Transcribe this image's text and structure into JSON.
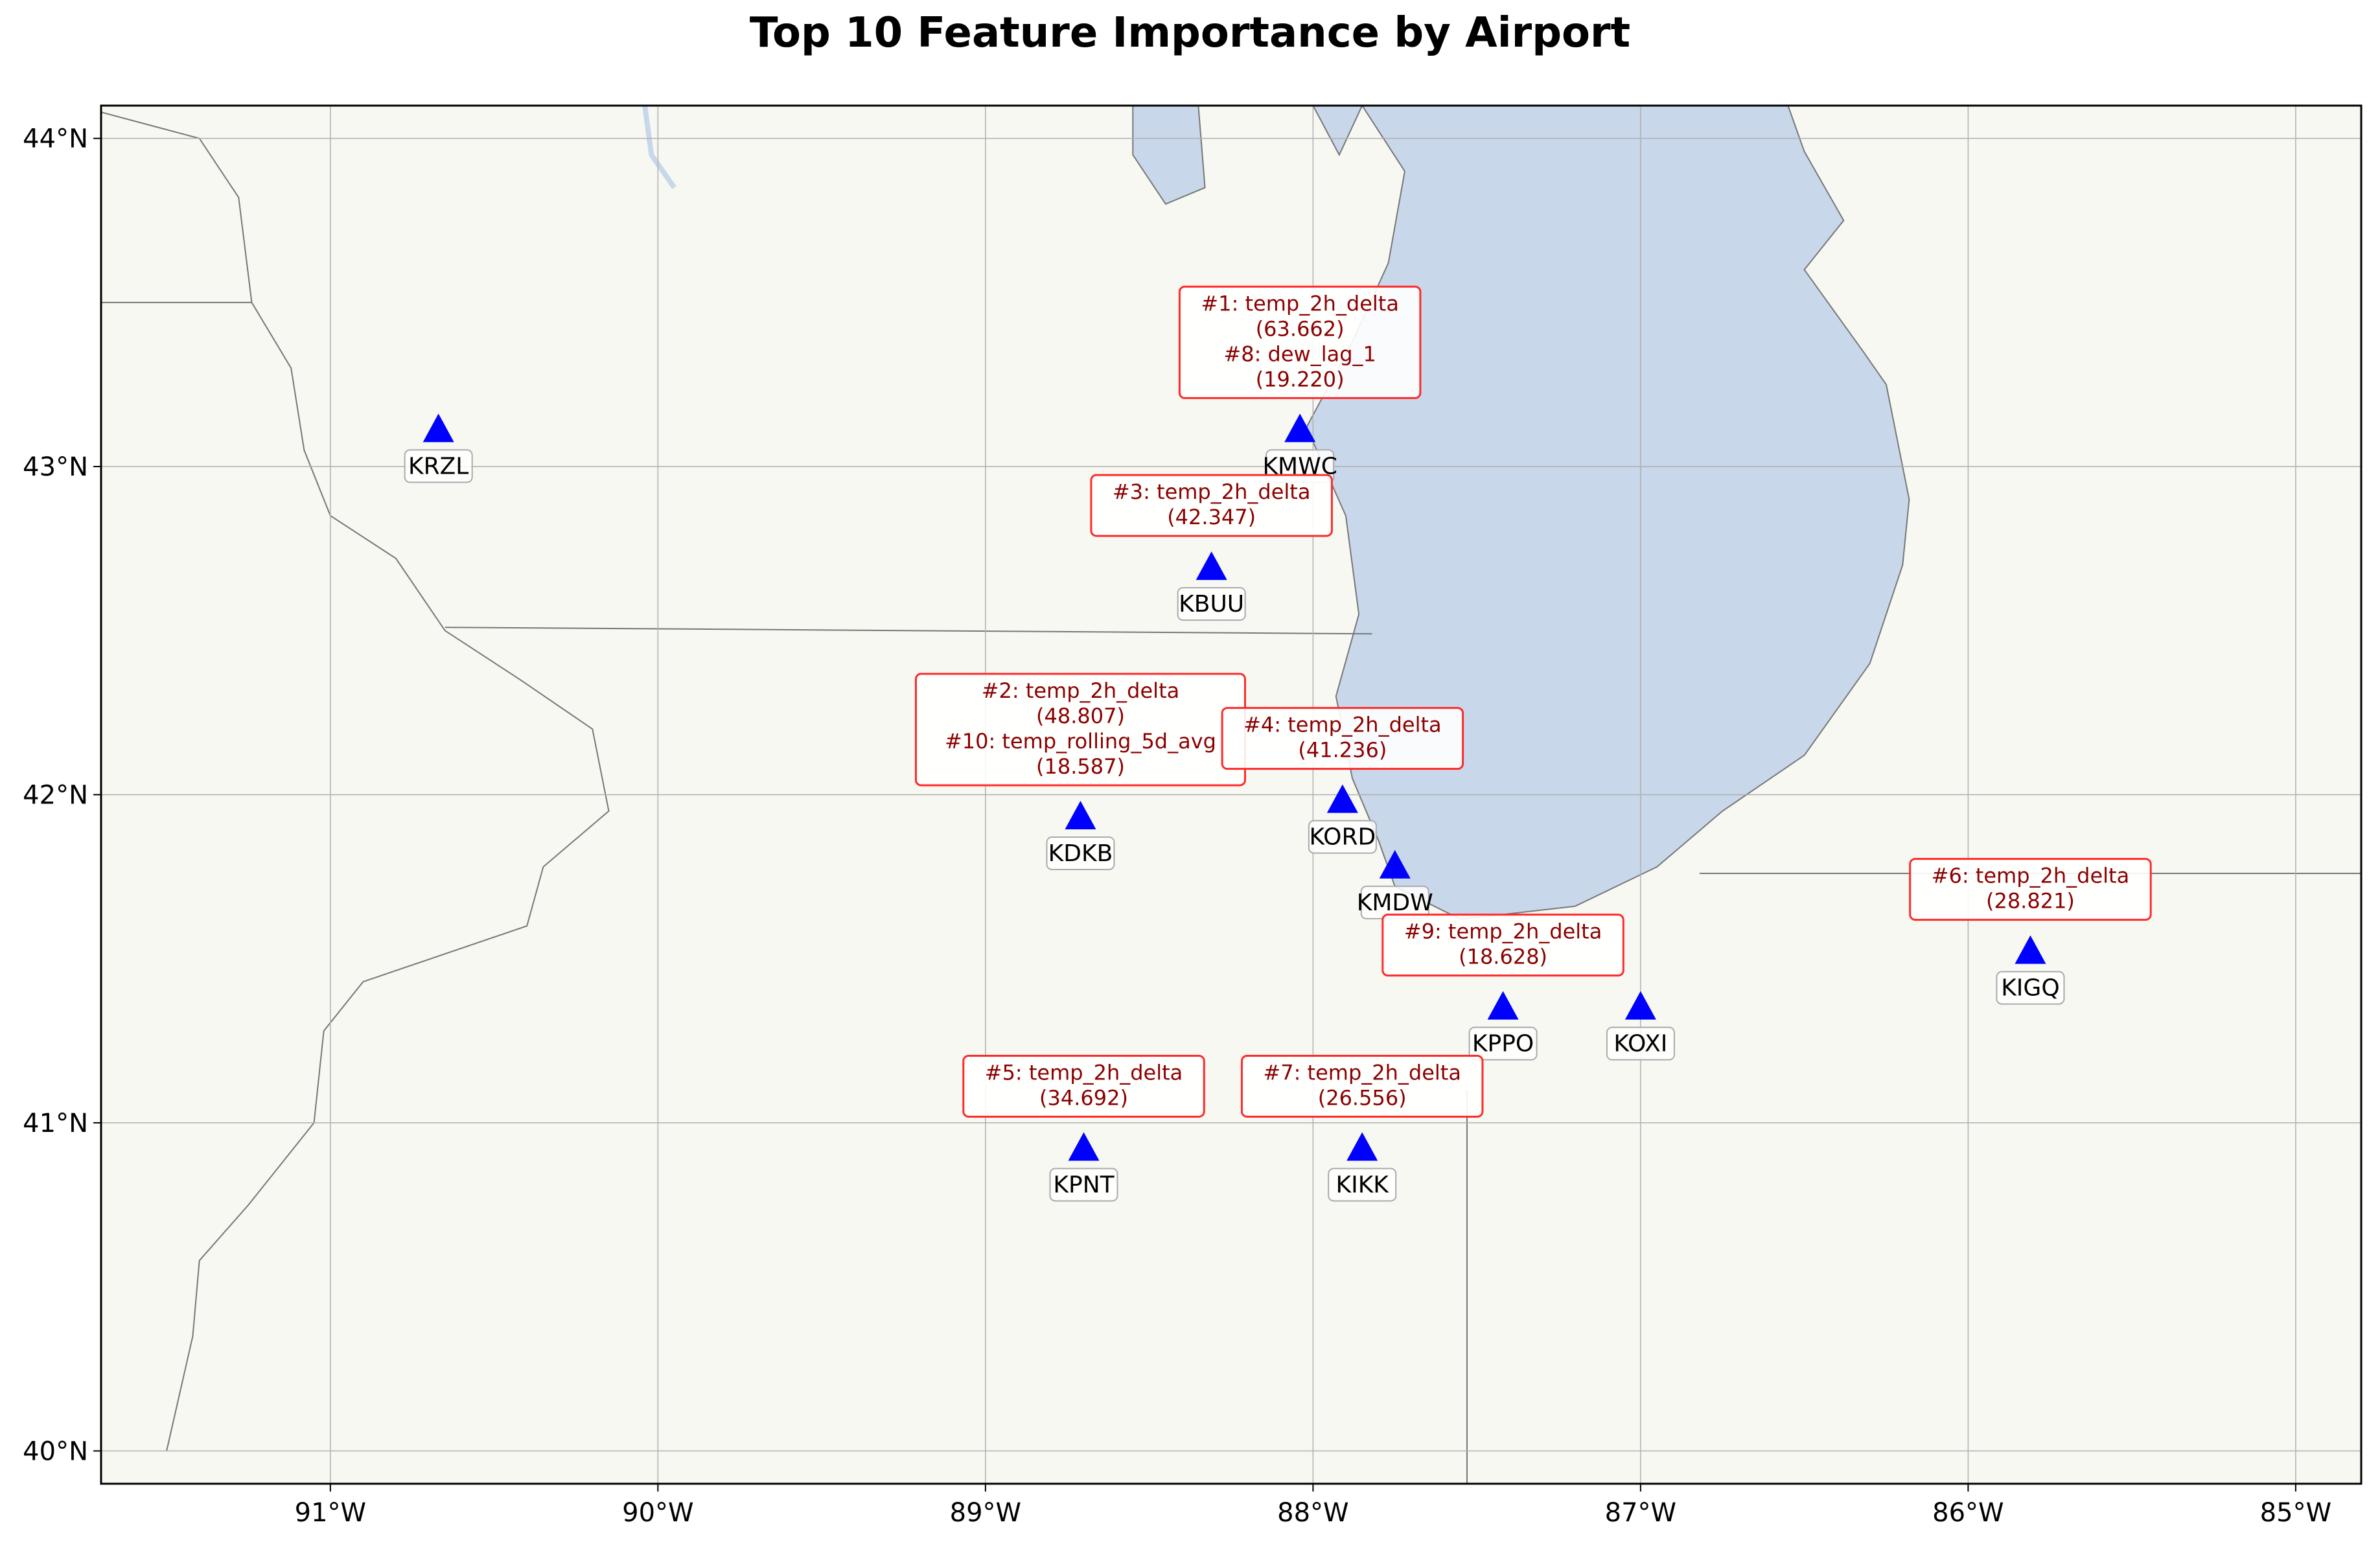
{
  "title": "Top 10 Feature Importance by Airport",
  "colors": {
    "land": "#f7f8f2",
    "water": "#c8d7ea",
    "marker": "#0000ff",
    "annotation_text": "#8b0000",
    "annotation_border": "#ff2a2a",
    "gridline": "#b0b0b0",
    "border_line": "#777777"
  },
  "map": {
    "lon_range": [
      -91.7,
      -84.8
    ],
    "lat_range": [
      39.9,
      44.1
    ],
    "lon_ticks": [
      {
        "value": -91,
        "label": "91°W"
      },
      {
        "value": -90,
        "label": "90°W"
      },
      {
        "value": -89,
        "label": "89°W"
      },
      {
        "value": -88,
        "label": "88°W"
      },
      {
        "value": -87,
        "label": "87°W"
      },
      {
        "value": -86,
        "label": "86°W"
      },
      {
        "value": -85,
        "label": "85°W"
      }
    ],
    "lat_ticks": [
      {
        "value": 44,
        "label": "44°N"
      },
      {
        "value": 43,
        "label": "43°N"
      },
      {
        "value": 42,
        "label": "42°N"
      },
      {
        "value": 41,
        "label": "41°N"
      },
      {
        "value": 40,
        "label": "40°N"
      }
    ],
    "marker_icon": "triangle-marker-icon",
    "stations": [
      {
        "code": "KRZL",
        "lon": -90.67,
        "lat": 43.11
      },
      {
        "code": "KMWC",
        "lon": -88.04,
        "lat": 43.11
      },
      {
        "code": "KBUU",
        "lon": -88.31,
        "lat": 42.69
      },
      {
        "code": "KDKB",
        "lon": -88.71,
        "lat": 41.93
      },
      {
        "code": "KORD",
        "lon": -87.91,
        "lat": 41.98
      },
      {
        "code": "KMDW",
        "lon": -87.75,
        "lat": 41.78
      },
      {
        "code": "KPPO",
        "lon": -87.42,
        "lat": 41.35
      },
      {
        "code": "KOXI",
        "lon": -87.0,
        "lat": 41.35
      },
      {
        "code": "KIGQ",
        "lon": -85.81,
        "lat": 41.52
      },
      {
        "code": "KPNT",
        "lon": -88.7,
        "lat": 40.92
      },
      {
        "code": "KIKK",
        "lon": -87.85,
        "lat": 40.92
      }
    ],
    "annotations": [
      {
        "station": "KMWC",
        "lines": [
          "#1: temp_2h_delta",
          "(63.662)",
          "#8: dew_lag_1",
          "(19.220)"
        ]
      },
      {
        "station": "KBUU",
        "lines": [
          "#3: temp_2h_delta",
          "(42.347)"
        ]
      },
      {
        "station": "KDKB",
        "lines": [
          "#2: temp_2h_delta",
          "(48.807)",
          "#10: temp_rolling_5d_avg",
          "(18.587)"
        ]
      },
      {
        "station": "KORD",
        "lines": [
          "#4: temp_2h_delta",
          "(41.236)"
        ]
      },
      {
        "station": "KPPO",
        "lines": [
          "#9: temp_2h_delta",
          "(18.628)"
        ]
      },
      {
        "station": "KIGQ",
        "lines": [
          "#6: temp_2h_delta",
          "(28.821)"
        ]
      },
      {
        "station": "KPNT",
        "lines": [
          "#5: temp_2h_delta",
          "(34.692)"
        ]
      },
      {
        "station": "KIKK",
        "lines": [
          "#7: temp_2h_delta",
          "(26.556)"
        ]
      }
    ]
  }
}
